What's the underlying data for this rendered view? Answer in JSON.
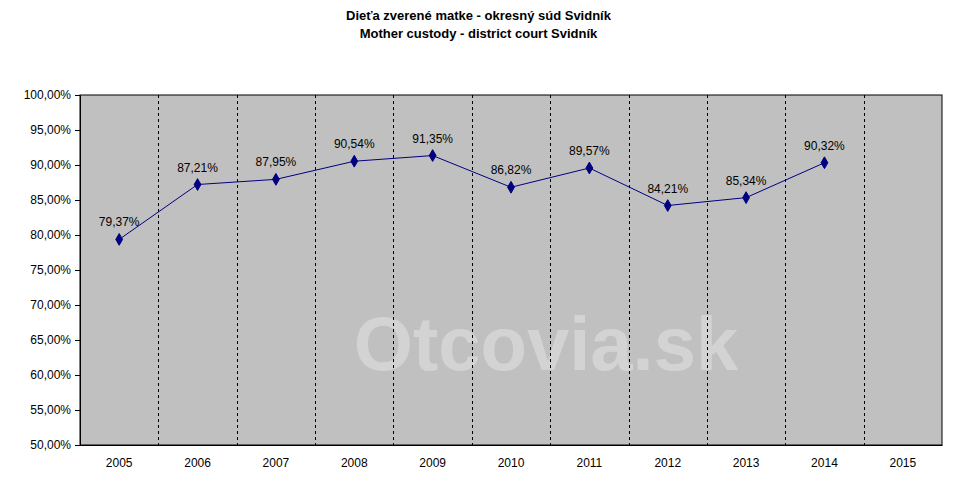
{
  "chart_data": {
    "type": "line",
    "title": "Dieťa zverené matke - okresný súd Svidník",
    "subtitle": "Mother custody - district court Svidník",
    "annotations": [
      "Otcovia.sk"
    ],
    "categories": [
      "2005",
      "2006",
      "2007",
      "2008",
      "2009",
      "2010",
      "2011",
      "2012",
      "2013",
      "2014",
      "2015"
    ],
    "series": [
      {
        "name": "Mother custody",
        "color": "#000080",
        "marker": "diamond",
        "line_style": "solid",
        "values": [
          79.37,
          87.21,
          87.95,
          90.54,
          91.35,
          86.82,
          89.57,
          84.21,
          85.34,
          90.32,
          null
        ],
        "value_labels": [
          "79,37%",
          "87,21%",
          "87,95%",
          "90,54%",
          "91,35%",
          "86,82%",
          "89,57%",
          "84,21%",
          "85,34%",
          "90,32%",
          null
        ]
      }
    ],
    "ylim": [
      50,
      100
    ],
    "yticks": [
      {
        "value": 50,
        "label": "50,00%"
      },
      {
        "value": 55,
        "label": "55,00%"
      },
      {
        "value": 60,
        "label": "60,00%"
      },
      {
        "value": 65,
        "label": "65,00%"
      },
      {
        "value": 70,
        "label": "70,00%"
      },
      {
        "value": 75,
        "label": "75,00%"
      },
      {
        "value": 80,
        "label": "80,00%"
      },
      {
        "value": 85,
        "label": "85,00%"
      },
      {
        "value": 90,
        "label": "90,00%"
      },
      {
        "value": 95,
        "label": "95,00%"
      },
      {
        "value": 100,
        "label": "100,00%"
      }
    ],
    "grid": true,
    "data_labels": true
  }
}
